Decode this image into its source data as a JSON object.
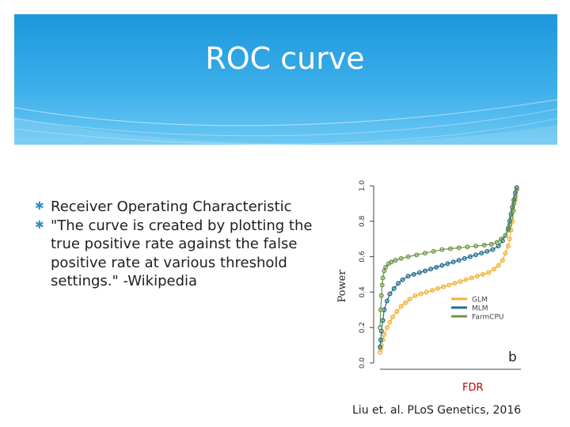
{
  "slide": {
    "title": "ROC curve",
    "bullets": [
      "Receiver Operating Characteristic",
      "\"The curve is created by plotting the true positive rate against the false positive rate at various threshold settings.\" -Wikipedia"
    ],
    "bullet_icon": "asterisk-icon",
    "citation": "Liu et. al. PLoS Genetics, 2016",
    "colors": {
      "header": "#1d97dc",
      "glm": "#f2b134",
      "mlm": "#1f6e8c",
      "farmcpu": "#6e9446",
      "x_label": "#c00000"
    }
  },
  "chart_data": {
    "type": "line",
    "xlabel": "FDR",
    "ylabel": "Power",
    "panel_label": "b",
    "ylim": [
      0,
      1
    ],
    "yticks": [
      "0.0",
      "0.2",
      "0.4",
      "0.6",
      "0.8",
      "1.0"
    ],
    "legend_position": "bottom-right",
    "grid": false,
    "series": [
      {
        "name": "GLM",
        "color": "#f2b134",
        "x": [
          0.0,
          0.005,
          0.01,
          0.02,
          0.03,
          0.05,
          0.07,
          0.09,
          0.12,
          0.15,
          0.18,
          0.21,
          0.25,
          0.29,
          0.33,
          0.37,
          0.41,
          0.45,
          0.49,
          0.53,
          0.57,
          0.61,
          0.65,
          0.69,
          0.73,
          0.77,
          0.81,
          0.84,
          0.87,
          0.89,
          0.91,
          0.92,
          0.93,
          0.94,
          0.95,
          0.96,
          0.97
        ],
        "y": [
          0.06,
          0.08,
          0.1,
          0.13,
          0.16,
          0.2,
          0.23,
          0.26,
          0.29,
          0.32,
          0.34,
          0.36,
          0.38,
          0.39,
          0.4,
          0.41,
          0.42,
          0.43,
          0.44,
          0.45,
          0.46,
          0.47,
          0.48,
          0.49,
          0.5,
          0.51,
          0.53,
          0.55,
          0.58,
          0.62,
          0.66,
          0.7,
          0.75,
          0.8,
          0.86,
          0.92,
          0.98
        ]
      },
      {
        "name": "MLM",
        "color": "#1f6e8c",
        "x": [
          0.0,
          0.005,
          0.01,
          0.02,
          0.03,
          0.05,
          0.07,
          0.1,
          0.13,
          0.16,
          0.2,
          0.24,
          0.28,
          0.32,
          0.36,
          0.4,
          0.44,
          0.48,
          0.52,
          0.56,
          0.6,
          0.64,
          0.68,
          0.72,
          0.76,
          0.8,
          0.84,
          0.87,
          0.89,
          0.91,
          0.92,
          0.93,
          0.94,
          0.95,
          0.96,
          0.97
        ],
        "y": [
          0.09,
          0.13,
          0.18,
          0.24,
          0.3,
          0.35,
          0.39,
          0.42,
          0.45,
          0.47,
          0.49,
          0.5,
          0.51,
          0.52,
          0.53,
          0.54,
          0.55,
          0.56,
          0.57,
          0.58,
          0.59,
          0.6,
          0.61,
          0.62,
          0.63,
          0.64,
          0.66,
          0.69,
          0.72,
          0.76,
          0.8,
          0.84,
          0.88,
          0.92,
          0.96,
          0.99
        ]
      },
      {
        "name": "FarmCPU",
        "color": "#6e9446",
        "x": [
          0.0,
          0.005,
          0.01,
          0.015,
          0.02,
          0.03,
          0.04,
          0.06,
          0.08,
          0.11,
          0.15,
          0.2,
          0.26,
          0.32,
          0.38,
          0.44,
          0.5,
          0.56,
          0.62,
          0.68,
          0.74,
          0.79,
          0.83,
          0.86,
          0.89,
          0.91,
          0.92,
          0.93,
          0.94,
          0.95,
          0.96,
          0.97
        ],
        "y": [
          0.2,
          0.3,
          0.38,
          0.44,
          0.48,
          0.52,
          0.54,
          0.56,
          0.57,
          0.58,
          0.59,
          0.6,
          0.61,
          0.62,
          0.63,
          0.64,
          0.645,
          0.65,
          0.655,
          0.66,
          0.665,
          0.67,
          0.68,
          0.7,
          0.72,
          0.75,
          0.78,
          0.82,
          0.86,
          0.9,
          0.94,
          0.98
        ]
      }
    ]
  }
}
